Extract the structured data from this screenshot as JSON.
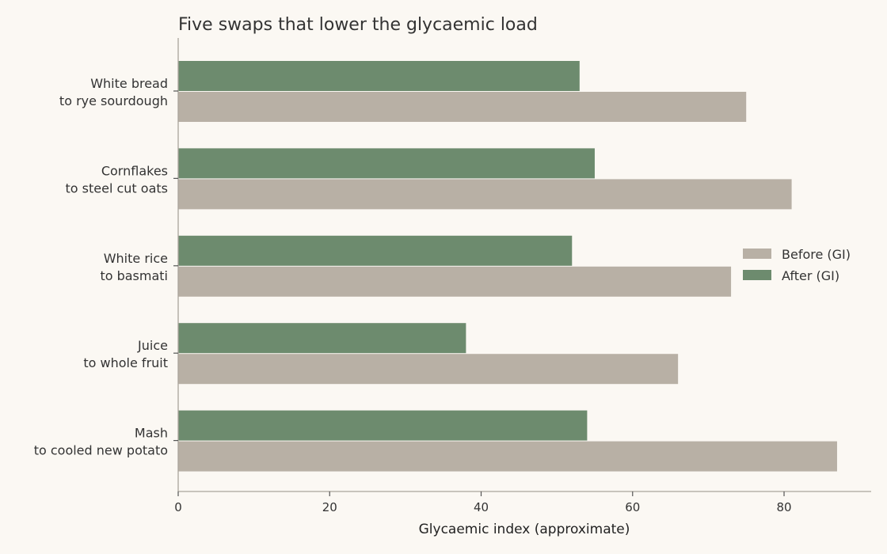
{
  "chart_data": {
    "type": "bar",
    "orientation": "horizontal",
    "title": "Five swaps that lower the glycaemic load",
    "xlabel": "Glycaemic index (approximate)",
    "ylabel": "",
    "categories": [
      [
        "White bread",
        "to rye sourdough"
      ],
      [
        "Cornflakes",
        "to steel cut oats"
      ],
      [
        "White rice",
        "to basmati"
      ],
      [
        "Juice",
        "to whole fruit"
      ],
      [
        "Mash",
        "to cooled new potato"
      ]
    ],
    "series": [
      {
        "name": "Before (GI)",
        "color": "#b8b0a5",
        "values": [
          75,
          81,
          73,
          66,
          87
        ]
      },
      {
        "name": "After (GI)",
        "color": "#6d8b6e",
        "values": [
          53,
          55,
          52,
          38,
          54
        ]
      }
    ],
    "xlim": [
      0,
      91.5
    ],
    "xticks": [
      0,
      20,
      40,
      60,
      80
    ],
    "grid": false,
    "legend_position": "center-right"
  }
}
